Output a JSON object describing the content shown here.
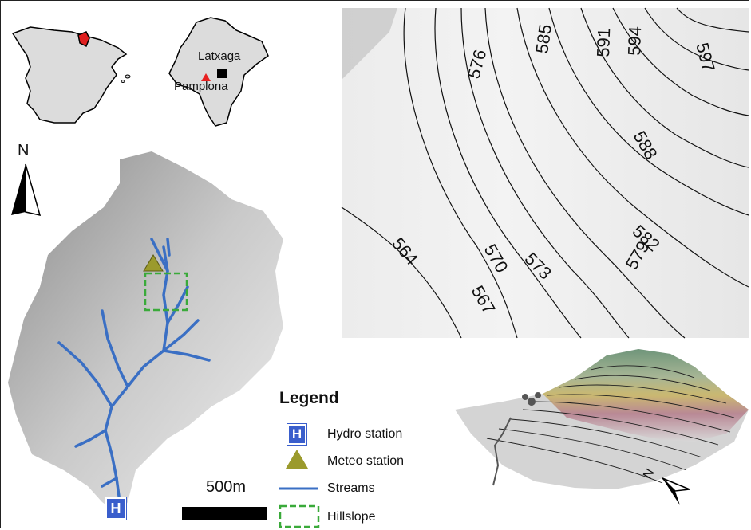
{
  "inset_spain": {
    "colors": {
      "land": "#dcdcdc",
      "outline": "#000000",
      "highlight": "#e02020"
    }
  },
  "inset_navarra": {
    "site_label": "Latxaga",
    "city_label": "Pamplona",
    "colors": {
      "land": "#dcdcdc",
      "city_marker": "#e82020",
      "site_marker": "#000000"
    }
  },
  "north_arrow": {
    "label": "N",
    "icon": "north-arrow-icon"
  },
  "catchment": {
    "colors": {
      "relief": "#c8c8c8",
      "streams": "#3a6fc4",
      "meteo": "#9b9a2c",
      "hillslope": "#3aaa3a",
      "hydro": "#3a5ecc"
    },
    "hydro_marker_letter": "H"
  },
  "legend": {
    "title": "Legend",
    "items": [
      {
        "label": "Hydro station",
        "icon": "hydro-station-icon"
      },
      {
        "label": "Meteo station",
        "icon": "meteo-station-icon"
      },
      {
        "label": "Streams",
        "icon": "stream-line-icon"
      },
      {
        "label": "Hillslope",
        "icon": "hillslope-box-icon"
      }
    ]
  },
  "scale_bar": {
    "label": "500m"
  },
  "contour_map": {
    "labels": [
      "576",
      "585",
      "591",
      "594",
      "597",
      "588",
      "582",
      "579",
      "573",
      "570",
      "567",
      "564"
    ]
  },
  "perspective_view": {
    "north_label": "N",
    "colors": {
      "top": "#5d8a6a",
      "middle": "#c9b35f",
      "lower": "#b47b8a",
      "base": "#cfcfcf"
    }
  }
}
